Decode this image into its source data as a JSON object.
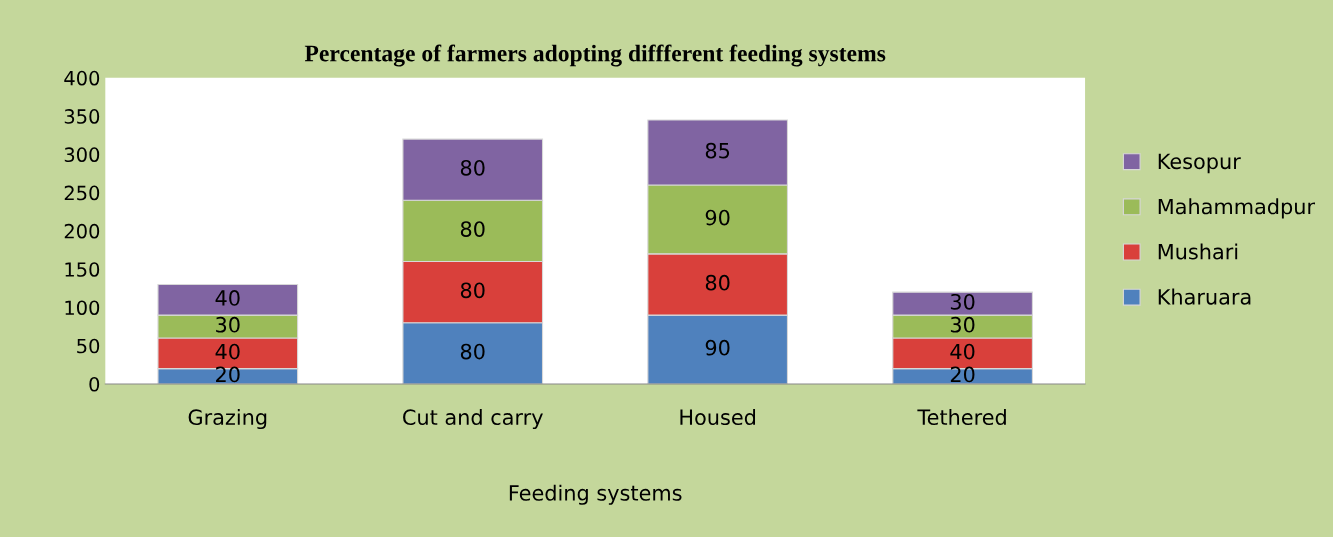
{
  "chart_data": {
    "type": "bar",
    "title": "Percentage of farmers adopting diffferent feeding systems",
    "xlabel": "Feeding systems",
    "categories": [
      "Grazing",
      "Cut and carry",
      "Housed",
      "Tethered"
    ],
    "stacked": true,
    "data_labels": true,
    "grid": false,
    "legend": "right",
    "ylim": [
      0,
      400
    ],
    "yticks": [
      0,
      50,
      100,
      150,
      200,
      250,
      300,
      350,
      400
    ],
    "series": [
      {
        "name": "Kharuara",
        "color": "#4f81bd",
        "values": [
          20,
          80,
          90,
          20
        ]
      },
      {
        "name": "Mushari",
        "color": "#d9403b",
        "values": [
          40,
          80,
          80,
          40
        ]
      },
      {
        "name": "Mahammadpur",
        "color": "#9bbb59",
        "values": [
          30,
          80,
          90,
          30
        ]
      },
      {
        "name": "Kesopur",
        "color": "#8064a2",
        "values": [
          40,
          80,
          85,
          30
        ]
      }
    ]
  }
}
